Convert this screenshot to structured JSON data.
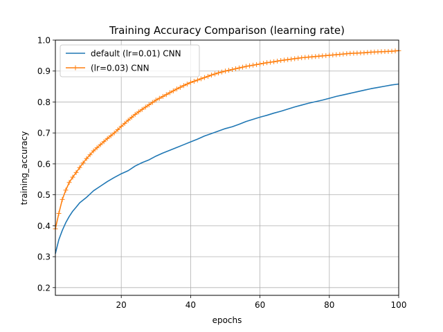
{
  "chart_data": {
    "type": "line",
    "title": "Training Accuracy Comparison (learning rate)",
    "xlabel": "epochs",
    "ylabel": "training_accuracy",
    "xlim": [
      1,
      100
    ],
    "ylim": [
      0.175,
      1.0
    ],
    "xticks": [
      20,
      40,
      60,
      80,
      100
    ],
    "yticks": [
      0.2,
      0.3,
      0.4,
      0.5,
      0.6,
      0.7,
      0.8,
      0.9,
      1.0
    ],
    "grid": true,
    "legend_position": "top-left",
    "series": [
      {
        "name": "default (lr=0.01) CNN",
        "color": "#1f77b4",
        "marker": "none",
        "x": [
          1,
          2,
          3,
          4,
          5,
          6,
          7,
          8,
          9,
          10,
          12,
          14,
          16,
          18,
          20,
          22,
          24,
          26,
          28,
          30,
          32,
          34,
          36,
          38,
          40,
          42,
          44,
          46,
          48,
          50,
          52,
          54,
          56,
          58,
          60,
          62,
          64,
          66,
          68,
          70,
          72,
          74,
          76,
          78,
          80,
          82,
          84,
          86,
          88,
          90,
          92,
          94,
          96,
          98,
          100
        ],
        "y": [
          0.31,
          0.355,
          0.385,
          0.41,
          0.43,
          0.447,
          0.46,
          0.474,
          0.483,
          0.492,
          0.513,
          0.528,
          0.543,
          0.556,
          0.568,
          0.578,
          0.593,
          0.604,
          0.613,
          0.625,
          0.635,
          0.644,
          0.653,
          0.662,
          0.671,
          0.68,
          0.69,
          0.698,
          0.706,
          0.714,
          0.72,
          0.728,
          0.737,
          0.744,
          0.751,
          0.757,
          0.764,
          0.77,
          0.777,
          0.784,
          0.79,
          0.796,
          0.801,
          0.806,
          0.812,
          0.818,
          0.823,
          0.828,
          0.833,
          0.838,
          0.843,
          0.847,
          0.851,
          0.855,
          0.858
        ]
      },
      {
        "name": "(lr=0.03) CNN",
        "color": "#ff7f0e",
        "marker": "plus",
        "x": [
          1,
          2,
          3,
          4,
          5,
          6,
          7,
          8,
          9,
          10,
          12,
          14,
          16,
          18,
          20,
          22,
          24,
          26,
          28,
          30,
          32,
          34,
          36,
          38,
          40,
          42,
          44,
          46,
          48,
          50,
          52,
          54,
          56,
          58,
          60,
          62,
          64,
          66,
          68,
          70,
          72,
          74,
          76,
          78,
          80,
          82,
          84,
          86,
          88,
          90,
          92,
          94,
          96,
          98,
          100
        ],
        "y": [
          0.39,
          0.44,
          0.485,
          0.515,
          0.54,
          0.557,
          0.572,
          0.588,
          0.603,
          0.617,
          0.642,
          0.662,
          0.682,
          0.7,
          0.721,
          0.741,
          0.76,
          0.776,
          0.791,
          0.806,
          0.818,
          0.83,
          0.842,
          0.853,
          0.863,
          0.871,
          0.879,
          0.887,
          0.894,
          0.9,
          0.905,
          0.91,
          0.915,
          0.919,
          0.923,
          0.927,
          0.93,
          0.934,
          0.937,
          0.94,
          0.943,
          0.945,
          0.947,
          0.949,
          0.951,
          0.953,
          0.955,
          0.957,
          0.958,
          0.959,
          0.961,
          0.962,
          0.963,
          0.964,
          0.966
        ]
      }
    ]
  }
}
